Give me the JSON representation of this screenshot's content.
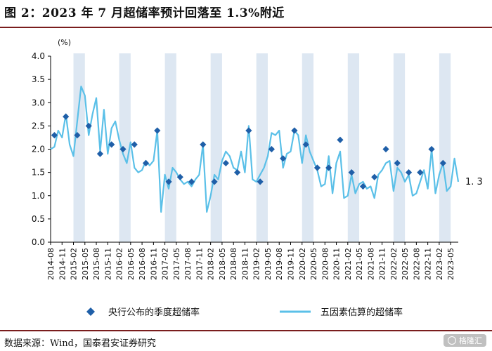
{
  "page": {
    "title": "图 2：2023 年 7 月超储率预计回落至 1.3%附近",
    "source": "数据来源：Wind，国泰君安证券研究",
    "watermark": "格隆汇"
  },
  "colors": {
    "line": "#5bc0e8",
    "diamond": "#1f5fa8",
    "shade": "#dde7f2",
    "title_rule": "#7a1d1d"
  },
  "chart_data": {
    "type": "line",
    "ylabel": "(%)",
    "ylim": [
      0.0,
      4.0
    ],
    "yticks": [
      "0.0",
      "0.5",
      "1.0",
      "1.5",
      "2.0",
      "2.5",
      "3.0",
      "3.5",
      "4.0"
    ],
    "x_start": "2014-08",
    "x_end": "2023-07",
    "xtick_labels": [
      "2014-08",
      "2014-11",
      "2015-02",
      "2015-05",
      "2015-08",
      "2015-11",
      "2016-02",
      "2016-05",
      "2016-08",
      "2016-11",
      "2017-02",
      "2017-05",
      "2017-08",
      "2017-11",
      "2018-02",
      "2018-05",
      "2018-08",
      "2018-11",
      "2019-02",
      "2019-05",
      "2019-08",
      "2019-11",
      "2020-02",
      "2020-05",
      "2020-08",
      "2020-11",
      "2021-02",
      "2021-05",
      "2021-08",
      "2021-11",
      "2022-02",
      "2022-05",
      "2022-08",
      "2022-11",
      "2023-02",
      "2023-05"
    ],
    "shaded_periods": [
      [
        "2015-02",
        "2015-05"
      ],
      [
        "2016-02",
        "2016-05"
      ],
      [
        "2017-02",
        "2017-05"
      ],
      [
        "2018-02",
        "2018-05"
      ],
      [
        "2019-02",
        "2019-05"
      ],
      [
        "2020-02",
        "2020-05"
      ],
      [
        "2021-02",
        "2021-05"
      ],
      [
        "2022-02",
        "2022-05"
      ],
      [
        "2023-02",
        "2023-05"
      ]
    ],
    "series": [
      {
        "name": "央行公布的季度超储率",
        "marker": "diamond",
        "points": [
          [
            "2014-09",
            2.3
          ],
          [
            "2014-12",
            2.7
          ],
          [
            "2015-03",
            2.3
          ],
          [
            "2015-06",
            2.5
          ],
          [
            "2015-09",
            1.9
          ],
          [
            "2015-12",
            2.1
          ],
          [
            "2016-03",
            2.0
          ],
          [
            "2016-06",
            2.1
          ],
          [
            "2016-09",
            1.7
          ],
          [
            "2016-12",
            2.4
          ],
          [
            "2017-03",
            1.3
          ],
          [
            "2017-06",
            1.4
          ],
          [
            "2017-09",
            1.3
          ],
          [
            "2017-12",
            2.1
          ],
          [
            "2018-03",
            1.3
          ],
          [
            "2018-06",
            1.7
          ],
          [
            "2018-09",
            1.5
          ],
          [
            "2018-12",
            2.4
          ],
          [
            "2019-03",
            1.3
          ],
          [
            "2019-06",
            2.0
          ],
          [
            "2019-09",
            1.8
          ],
          [
            "2019-12",
            2.4
          ],
          [
            "2020-03",
            2.1
          ],
          [
            "2020-06",
            1.6
          ],
          [
            "2020-09",
            1.6
          ],
          [
            "2020-12",
            2.2
          ],
          [
            "2021-03",
            1.5
          ],
          [
            "2021-06",
            1.2
          ],
          [
            "2021-09",
            1.4
          ],
          [
            "2021-12",
            2.0
          ],
          [
            "2022-03",
            1.7
          ],
          [
            "2022-06",
            1.5
          ],
          [
            "2022-09",
            1.5
          ],
          [
            "2022-12",
            2.0
          ],
          [
            "2023-03",
            1.7
          ]
        ]
      },
      {
        "name": "五因素估算的超储率",
        "marker": "line",
        "points": [
          [
            "2014-08",
            2.0
          ],
          [
            "2014-09",
            2.05
          ],
          [
            "2014-10",
            2.4
          ],
          [
            "2014-11",
            2.25
          ],
          [
            "2014-12",
            2.75
          ],
          [
            "2015-01",
            2.1
          ],
          [
            "2015-02",
            1.85
          ],
          [
            "2015-03",
            2.6
          ],
          [
            "2015-04",
            3.35
          ],
          [
            "2015-05",
            3.15
          ],
          [
            "2015-06",
            2.3
          ],
          [
            "2015-07",
            2.75
          ],
          [
            "2015-08",
            3.1
          ],
          [
            "2015-09",
            1.95
          ],
          [
            "2015-10",
            2.85
          ],
          [
            "2015-11",
            1.9
          ],
          [
            "2015-12",
            2.45
          ],
          [
            "2016-01",
            2.6
          ],
          [
            "2016-02",
            2.2
          ],
          [
            "2016-03",
            1.9
          ],
          [
            "2016-04",
            1.7
          ],
          [
            "2016-05",
            2.15
          ],
          [
            "2016-06",
            1.6
          ],
          [
            "2016-07",
            1.5
          ],
          [
            "2016-08",
            1.55
          ],
          [
            "2016-09",
            1.75
          ],
          [
            "2016-10",
            1.65
          ],
          [
            "2016-11",
            1.75
          ],
          [
            "2016-12",
            2.4
          ],
          [
            "2017-01",
            0.65
          ],
          [
            "2017-02",
            1.45
          ],
          [
            "2017-03",
            1.15
          ],
          [
            "2017-04",
            1.6
          ],
          [
            "2017-05",
            1.5
          ],
          [
            "2017-06",
            1.35
          ],
          [
            "2017-07",
            1.25
          ],
          [
            "2017-08",
            1.3
          ],
          [
            "2017-09",
            1.2
          ],
          [
            "2017-10",
            1.35
          ],
          [
            "2017-11",
            1.45
          ],
          [
            "2017-12",
            2.1
          ],
          [
            "2018-01",
            0.65
          ],
          [
            "2018-02",
            1.0
          ],
          [
            "2018-03",
            1.45
          ],
          [
            "2018-04",
            1.35
          ],
          [
            "2018-05",
            1.75
          ],
          [
            "2018-06",
            1.95
          ],
          [
            "2018-07",
            1.85
          ],
          [
            "2018-08",
            1.6
          ],
          [
            "2018-09",
            1.55
          ],
          [
            "2018-10",
            1.95
          ],
          [
            "2018-11",
            1.5
          ],
          [
            "2018-12",
            2.5
          ],
          [
            "2019-01",
            1.35
          ],
          [
            "2019-02",
            1.3
          ],
          [
            "2019-03",
            1.45
          ],
          [
            "2019-04",
            1.6
          ],
          [
            "2019-05",
            1.85
          ],
          [
            "2019-06",
            2.35
          ],
          [
            "2019-07",
            2.3
          ],
          [
            "2019-08",
            2.4
          ],
          [
            "2019-09",
            1.6
          ],
          [
            "2019-10",
            1.9
          ],
          [
            "2019-11",
            1.95
          ],
          [
            "2019-12",
            2.4
          ],
          [
            "2020-01",
            2.3
          ],
          [
            "2020-02",
            1.7
          ],
          [
            "2020-03",
            2.3
          ],
          [
            "2020-04",
            1.95
          ],
          [
            "2020-05",
            1.75
          ],
          [
            "2020-06",
            1.55
          ],
          [
            "2020-07",
            1.2
          ],
          [
            "2020-08",
            1.25
          ],
          [
            "2020-09",
            1.85
          ],
          [
            "2020-10",
            1.05
          ],
          [
            "2020-11",
            1.7
          ],
          [
            "2020-12",
            1.95
          ],
          [
            "2021-01",
            0.95
          ],
          [
            "2021-02",
            1.0
          ],
          [
            "2021-03",
            1.45
          ],
          [
            "2021-04",
            1.05
          ],
          [
            "2021-05",
            1.25
          ],
          [
            "2021-06",
            1.3
          ],
          [
            "2021-07",
            1.15
          ],
          [
            "2021-08",
            1.2
          ],
          [
            "2021-09",
            0.95
          ],
          [
            "2021-10",
            1.45
          ],
          [
            "2021-11",
            1.55
          ],
          [
            "2021-12",
            1.7
          ],
          [
            "2022-01",
            1.75
          ],
          [
            "2022-02",
            1.1
          ],
          [
            "2022-03",
            1.6
          ],
          [
            "2022-04",
            1.5
          ],
          [
            "2022-05",
            1.3
          ],
          [
            "2022-06",
            1.45
          ],
          [
            "2022-07",
            1.0
          ],
          [
            "2022-08",
            1.05
          ],
          [
            "2022-09",
            1.3
          ],
          [
            "2022-10",
            1.55
          ],
          [
            "2022-11",
            1.15
          ],
          [
            "2022-12",
            2.0
          ],
          [
            "2023-01",
            1.05
          ],
          [
            "2023-02",
            1.45
          ],
          [
            "2023-03",
            1.7
          ],
          [
            "2023-04",
            1.1
          ],
          [
            "2023-05",
            1.2
          ],
          [
            "2023-06",
            1.8
          ],
          [
            "2023-07",
            1.3
          ]
        ]
      }
    ],
    "annotation": {
      "date": "2023-07",
      "value": 1.3,
      "text": "1. 3"
    }
  }
}
